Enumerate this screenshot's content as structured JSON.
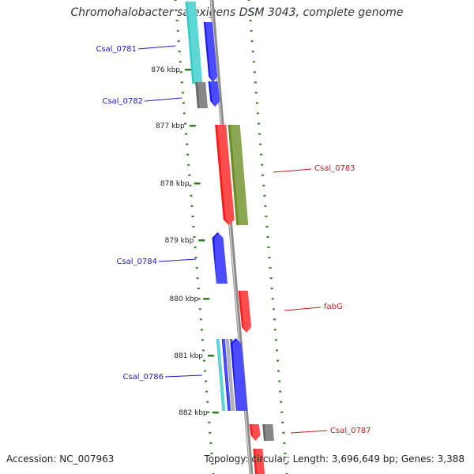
{
  "title": "Chromohalobacter salexigens DSM 3043, complete genome",
  "footer": {
    "accession": "Accession: NC_007963",
    "stats": "Topology: circular; Length: 3,696,649 bp; Genes: 3,388"
  },
  "colors": {
    "backbone": "#8c8c8c",
    "tick": "#2e7d1e",
    "forward_label": "#1a1acc",
    "reverse_label": "#cc1a1a",
    "gene_blue": "#1a1aff",
    "gene_red": "#ff1a1a",
    "gene_cyan": "#33cccc",
    "gene_olive": "#6b8e23",
    "gene_gray": "#666666"
  },
  "kbp_ticks": [
    "876 kbp",
    "877 kbp",
    "878 kbp",
    "879 kbp",
    "880 kbp",
    "881 kbp",
    "882 kbp"
  ],
  "gene_labels": [
    {
      "text": "Csal_0781",
      "strand": "forward"
    },
    {
      "text": "Csal_0782",
      "strand": "forward"
    },
    {
      "text": "Csal_0783",
      "strand": "reverse"
    },
    {
      "text": "Csal_0784",
      "strand": "forward"
    },
    {
      "text": "fabG",
      "strand": "reverse"
    },
    {
      "text": "Csal_0786",
      "strand": "forward"
    },
    {
      "text": "Csal_0787",
      "strand": "reverse"
    }
  ]
}
